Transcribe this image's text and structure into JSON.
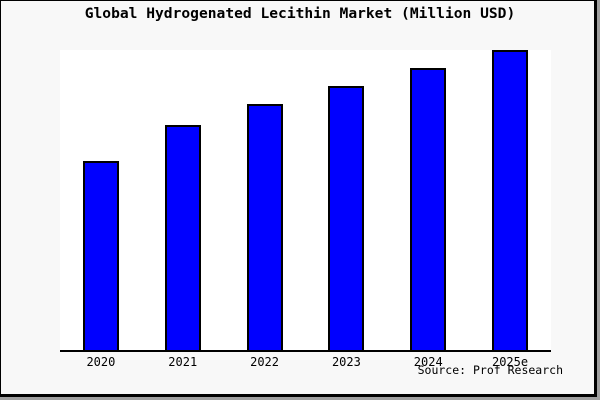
{
  "title": "Global Hydrogenated Lecithin Market (Million USD)",
  "source": "Source: Prof Research",
  "colors": {
    "figure_background": "#f8f8f8",
    "plot_background": "#ffffff",
    "bar_fill": "#0000ff",
    "bar_edge": "#000000",
    "axis_line": "#000000",
    "frame_border": "#000000",
    "frame_shadow": "#9f9f9f",
    "text": "#000000"
  },
  "chart_data": {
    "type": "bar",
    "title": "Global Hydrogenated Lecithin Market (Million USD)",
    "categories": [
      "2020",
      "2021",
      "2022",
      "2023",
      "2024",
      "2025e"
    ],
    "values": [
      63,
      75,
      82,
      88,
      94,
      100
    ],
    "value_scale": "relative bar heights as % of tallest bar (2025e); chart shows no y-axis tick labels",
    "xlabel": "",
    "ylabel": "",
    "ylim": [
      0,
      100
    ],
    "grid": false,
    "legend": false,
    "y_axis_shown": false,
    "bar_color": "#0000ff",
    "bar_edge_color": "#000000"
  }
}
